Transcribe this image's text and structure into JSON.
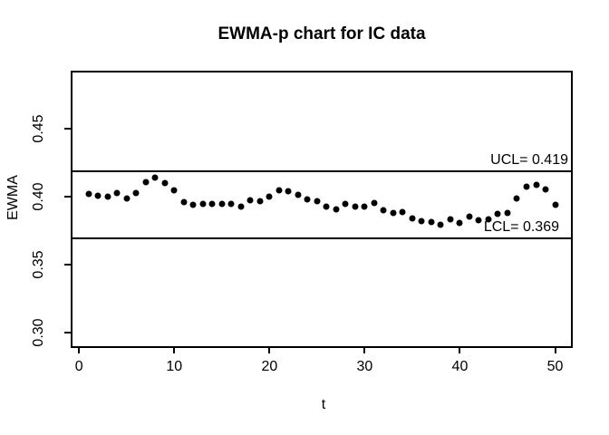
{
  "title": "EWMA-p chart for IC data",
  "colors": {
    "background": "#ffffff",
    "foreground": "#000000",
    "point_color": "#000000",
    "limit_line_color": "#000000"
  },
  "chart_data": {
    "type": "scatter",
    "title": "EWMA-p chart for IC data",
    "xlabel": "t",
    "ylabel": "EWMA",
    "grid": false,
    "legend": null,
    "xlim": [
      -0.88,
      51.76
    ],
    "ylim": [
      0.2893,
      0.4927
    ],
    "x_ticks": [
      0,
      10,
      20,
      30,
      40,
      50
    ],
    "y_ticks": [
      0.3,
      0.35,
      0.4,
      0.45
    ],
    "y_tick_labels": [
      "0.30",
      "0.35",
      "0.40",
      "0.45"
    ],
    "ucl": {
      "label": "UCL= 0.419",
      "value": 0.419
    },
    "lcl": {
      "label": "LCL= 0.369",
      "value": 0.369
    },
    "x": [
      1,
      2,
      3,
      4,
      5,
      6,
      7,
      8,
      9,
      10,
      11,
      12,
      13,
      14,
      15,
      16,
      17,
      18,
      19,
      20,
      21,
      22,
      23,
      24,
      25,
      26,
      27,
      28,
      29,
      30,
      31,
      32,
      33,
      34,
      35,
      36,
      37,
      38,
      39,
      40,
      41,
      42,
      43,
      44,
      45,
      46,
      47,
      48,
      49,
      50
    ],
    "y": [
      0.402,
      0.401,
      0.4,
      0.403,
      0.3985,
      0.4025,
      0.411,
      0.414,
      0.41,
      0.4045,
      0.396,
      0.394,
      0.395,
      0.395,
      0.3945,
      0.395,
      0.3925,
      0.3975,
      0.3965,
      0.4,
      0.405,
      0.404,
      0.4015,
      0.398,
      0.3965,
      0.3925,
      0.3905,
      0.395,
      0.3925,
      0.393,
      0.3955,
      0.39,
      0.388,
      0.3885,
      0.384,
      0.382,
      0.3815,
      0.379,
      0.3835,
      0.3805,
      0.385,
      0.3825,
      0.383,
      0.387,
      0.388,
      0.3985,
      0.4075,
      0.4085,
      0.4055,
      0.394
    ]
  }
}
